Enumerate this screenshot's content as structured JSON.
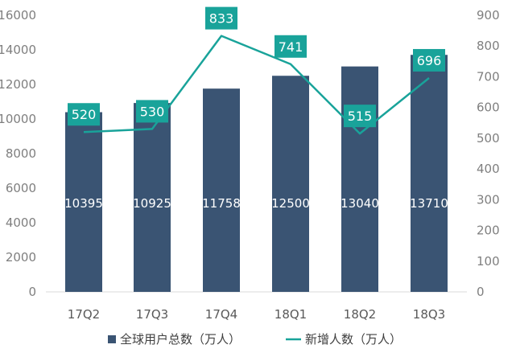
{
  "chart_data": {
    "type": "bar",
    "categories": [
      "17Q2",
      "17Q3",
      "17Q4",
      "18Q1",
      "18Q2",
      "18Q3"
    ],
    "series": [
      {
        "name": "全球用户总数（万人）",
        "kind": "bar",
        "axis": "left",
        "values": [
          10395,
          10925,
          11758,
          12500,
          13040,
          13710
        ],
        "labels": [
          "10395",
          "10925",
          "11758",
          "12500",
          "13040",
          "13710"
        ]
      },
      {
        "name": "新增人数（万人）",
        "kind": "line",
        "axis": "right",
        "values": [
          520,
          530,
          833,
          741,
          515,
          696
        ],
        "labels": [
          "520",
          "530",
          "833",
          "741",
          "515",
          "696"
        ]
      }
    ],
    "y_left": {
      "ylim": [
        0,
        16000
      ],
      "ticks": [
        "0",
        "2000",
        "4000",
        "6000",
        "8000",
        "10000",
        "12000",
        "14000",
        "16000"
      ]
    },
    "y_right": {
      "ylim": [
        0,
        900
      ],
      "ticks": [
        "0",
        "100",
        "200",
        "300",
        "400",
        "500",
        "600",
        "700",
        "800",
        "900"
      ]
    },
    "grid": false,
    "legend_position": "bottom",
    "colors": {
      "bar": "#3a5473",
      "line": "#19a39a",
      "label_box": "#19a39a"
    }
  }
}
